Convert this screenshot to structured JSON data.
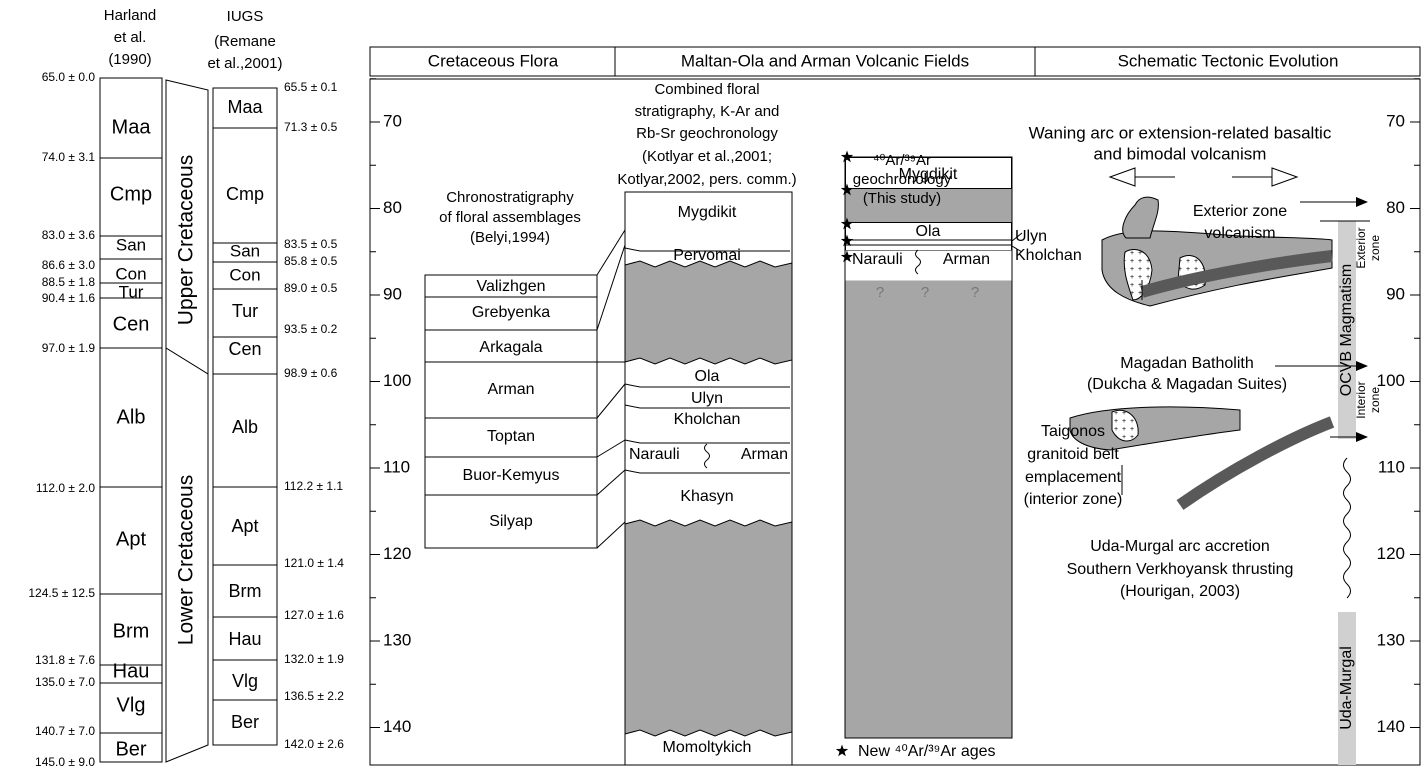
{
  "harland": {
    "title": [
      "Harland",
      "et al.",
      "(1990)"
    ],
    "stages": [
      "Maa",
      "Cmp",
      "San",
      "Con",
      "Tur",
      "Cen",
      "Alb",
      "Apt",
      "Brm",
      "Hau",
      "Vlg",
      "Ber"
    ],
    "boundaries": [
      "65.0 ± 0.0",
      "74.0 ± 3.1",
      "83.0 ± 3.6",
      "86.6 ± 3.0",
      "88.5 ± 1.8",
      "90.4 ± 1.6",
      "97.0 ± 1.9",
      "112.0 ± 2.0",
      "124.5 ± 12.5",
      "131.8 ± 7.6",
      "135.0 ± 7.0",
      "140.7 ± 7.0",
      "145.0 ± 9.0"
    ]
  },
  "periods": [
    "Upper Cretaceous",
    "Lower Cretaceous"
  ],
  "iugs": {
    "title": [
      "IUGS",
      "(Remane",
      "et al.,2001)"
    ],
    "stages": [
      "Maa",
      "Cmp",
      "San",
      "Con",
      "Tur",
      "Cen",
      "Alb",
      "Apt",
      "Brm",
      "Hau",
      "Vlg",
      "Ber"
    ],
    "boundaries": [
      "65.5 ± 0.1",
      "71.3 ± 0.5",
      "83.5 ± 0.5",
      "85.8 ± 0.5",
      "89.0 ± 0.5",
      "93.5 ± 0.2",
      "98.9 ± 0.6",
      "112.2 ± 1.1",
      "121.0 ± 1.4",
      "127.0 ± 1.6",
      "132.0 ± 1.9",
      "136.5 ± 2.2",
      "142.0 ± 2.6"
    ]
  },
  "headers": [
    "Cretaceous Flora",
    "Maltan-Ola and Arman Volcanic Fields",
    "Schematic Tectonic Evolution"
  ],
  "age_axis": {
    "ticks": [
      70,
      80,
      90,
      100,
      110,
      120,
      130,
      140
    ]
  },
  "flora": {
    "title": [
      "Chronostratigraphy",
      "of floral assemblages",
      "(Belyi,1994)"
    ],
    "units": [
      "Valizhgen",
      "Grebyenka",
      "Arkagala",
      "Arman",
      "Toptan",
      "Buor-Kemyus",
      "Silyap"
    ]
  },
  "combined": {
    "title": [
      "Combined floral",
      "stratigraphy, K-Ar and",
      "Rb-Sr geochronology",
      "(Kotlyar et al.,2001;",
      "Kotlyar,2002, pers. comm.)"
    ],
    "units": [
      "Mygdikit",
      "Pervomai",
      "Ola",
      "Ulyn",
      "Kholchan",
      "Narauli",
      "Arman",
      "Khasyn",
      "Momoltykich"
    ]
  },
  "arar": {
    "title": [
      "⁴⁰Ar/³⁹Ar",
      "geochronology",
      "(This study)"
    ],
    "units": [
      "Mygdikit",
      "Ola",
      "Narauli",
      "Arman"
    ],
    "side_labels": [
      "Ulyn",
      "Kholchan"
    ],
    "unknown": [
      "?",
      "?",
      "?"
    ],
    "legend": "New ⁴⁰Ar/³⁹Ar ages"
  },
  "tectonic": {
    "notes": [
      [
        "Waning arc or extension-related basaltic",
        "and bimodal volcanism"
      ],
      [
        "Exterior zone",
        "volcanism"
      ],
      [
        "Magadan Batholith",
        "(Dukcha & Magadan Suites)"
      ],
      [
        "Taigonos",
        "granitoid belt",
        "emplacement",
        "(interior zone)"
      ],
      [
        "Uda-Murgal arc accretion",
        "Southern Verkhoyansk thrusting",
        "(Hourigan, 2003)"
      ]
    ],
    "bars": {
      "ocvb": "OCVB Magmatism",
      "exterior": [
        "Exterior",
        "zone"
      ],
      "interior": [
        "Interior",
        "zone"
      ],
      "uda": "Uda-Murgal"
    }
  }
}
